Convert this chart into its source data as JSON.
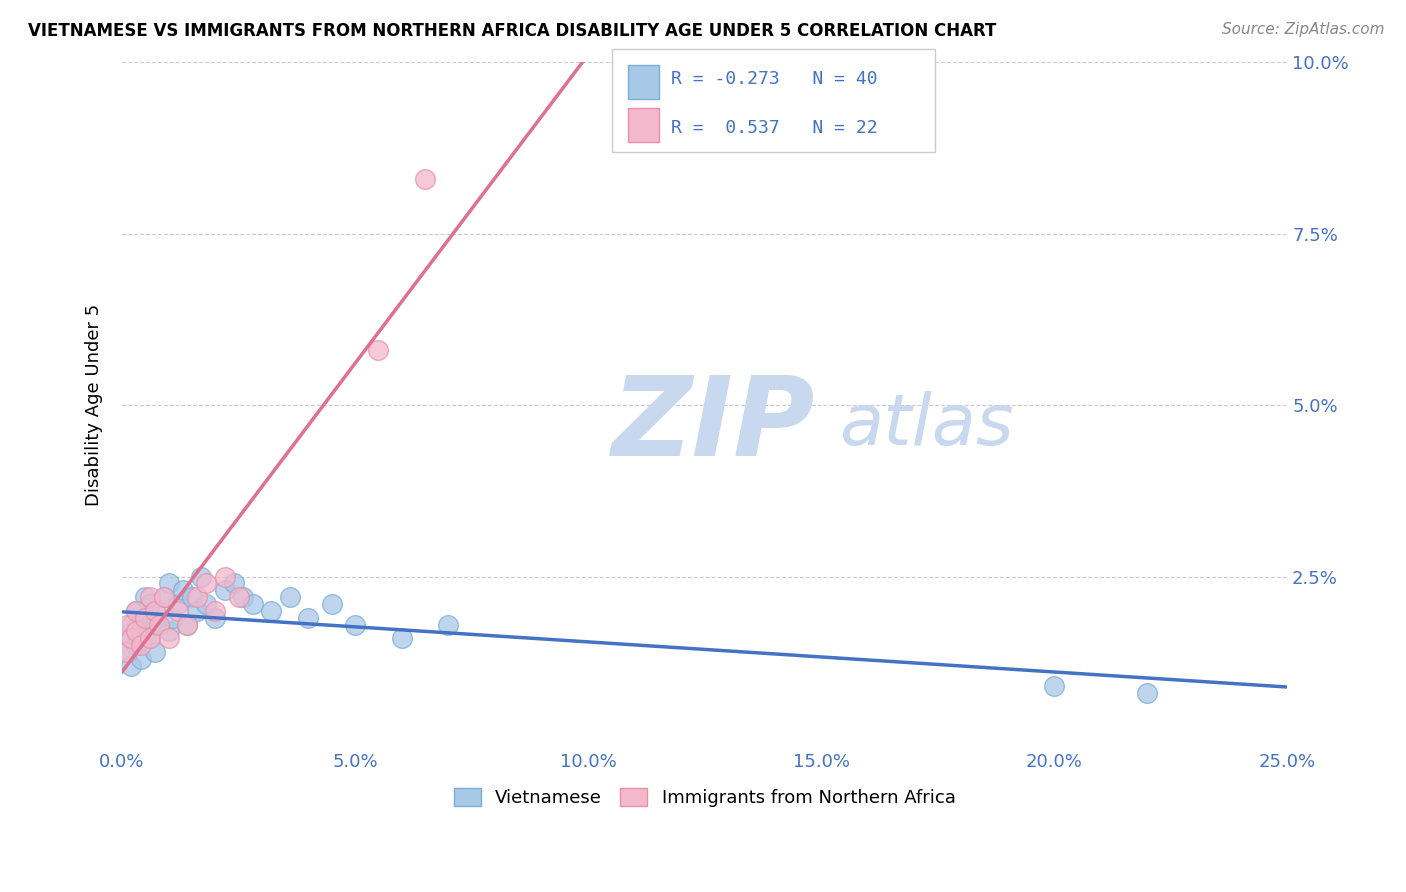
{
  "title": "VIETNAMESE VS IMMIGRANTS FROM NORTHERN AFRICA DISABILITY AGE UNDER 5 CORRELATION CHART",
  "source": "Source: ZipAtlas.com",
  "ylabel": "Disability Age Under 5",
  "xlim": [
    0.0,
    0.25
  ],
  "ylim": [
    0.0,
    0.1
  ],
  "xticks": [
    0.0,
    0.05,
    0.1,
    0.15,
    0.2,
    0.25
  ],
  "yticks": [
    0.0,
    0.025,
    0.05,
    0.075,
    0.1
  ],
  "xtick_labels": [
    "0.0%",
    "5.0%",
    "10.0%",
    "15.0%",
    "20.0%",
    "25.0%"
  ],
  "ytick_labels": [
    "",
    "2.5%",
    "5.0%",
    "7.5%",
    "10.0%"
  ],
  "series1_name": "Vietnamese",
  "series1_color": "#a8c8e8",
  "series1_edge_color": "#7aafd4",
  "series1_line_color": "#4472c4",
  "series1_R": -0.273,
  "series1_N": 40,
  "series2_name": "Immigrants from Northern Africa",
  "series2_color": "#f4b8cc",
  "series2_edge_color": "#e890a8",
  "series2_line_color": "#e07090",
  "series2_R": 0.537,
  "series2_N": 22,
  "watermark_zip": "ZIP",
  "watermark_atlas": "atlas",
  "watermark_color_zip": "#c8d8ee",
  "watermark_color_atlas": "#c8d8ee",
  "background_color": "#ffffff",
  "grid_color": "#cccccc",
  "title_color": "#000000",
  "tick_label_color": "#4472c4",
  "legend_box_color": "#ffffff",
  "legend_border_color": "#cccccc",
  "series1_x": [
    0.001,
    0.001,
    0.002,
    0.002,
    0.003,
    0.003,
    0.004,
    0.004,
    0.005,
    0.005,
    0.006,
    0.006,
    0.007,
    0.007,
    0.008,
    0.009,
    0.01,
    0.01,
    0.011,
    0.012,
    0.013,
    0.014,
    0.015,
    0.016,
    0.017,
    0.018,
    0.02,
    0.022,
    0.024,
    0.026,
    0.028,
    0.032,
    0.036,
    0.04,
    0.045,
    0.05,
    0.06,
    0.07,
    0.2,
    0.22
  ],
  "series1_y": [
    0.016,
    0.014,
    0.018,
    0.012,
    0.02,
    0.015,
    0.017,
    0.013,
    0.019,
    0.022,
    0.016,
    0.021,
    0.018,
    0.014,
    0.02,
    0.022,
    0.017,
    0.024,
    0.019,
    0.021,
    0.023,
    0.018,
    0.022,
    0.02,
    0.025,
    0.021,
    0.019,
    0.023,
    0.024,
    0.022,
    0.021,
    0.02,
    0.022,
    0.019,
    0.021,
    0.018,
    0.016,
    0.018,
    0.009,
    0.008
  ],
  "series2_x": [
    0.001,
    0.001,
    0.002,
    0.003,
    0.003,
    0.004,
    0.005,
    0.006,
    0.006,
    0.007,
    0.008,
    0.009,
    0.01,
    0.012,
    0.014,
    0.016,
    0.018,
    0.02,
    0.022,
    0.025,
    0.055,
    0.065
  ],
  "series2_y": [
    0.018,
    0.014,
    0.016,
    0.02,
    0.017,
    0.015,
    0.019,
    0.016,
    0.022,
    0.02,
    0.018,
    0.022,
    0.016,
    0.02,
    0.018,
    0.022,
    0.024,
    0.02,
    0.025,
    0.022,
    0.058,
    0.083
  ]
}
